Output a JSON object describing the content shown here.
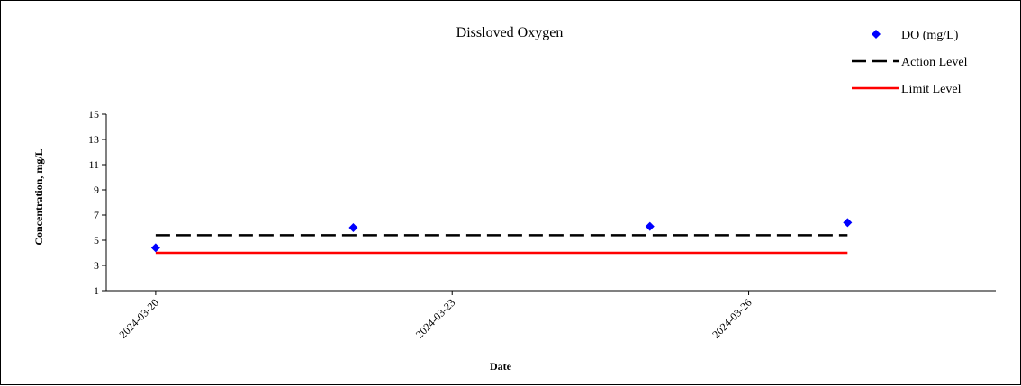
{
  "chart_data": {
    "type": "scatter",
    "title": "Dissloved Oxygen",
    "xlabel": "Date",
    "ylabel": "Concentration, mg/L",
    "xlim": [
      "2024-03-19 12:00",
      "2024-03-28 12:00"
    ],
    "ylim": [
      1,
      15
    ],
    "yticks": [
      1,
      3,
      5,
      7,
      9,
      11,
      13,
      15
    ],
    "xticks": [
      "2024-03-20",
      "2024-03-23",
      "2024-03-26"
    ],
    "grid": false,
    "legend_position": "top-right",
    "series": [
      {
        "name": "DO (mg/L)",
        "type": "scatter",
        "marker": "diamond",
        "color": "#0000ff",
        "points": [
          {
            "x": "2024-03-20",
            "y": 4.4
          },
          {
            "x": "2024-03-22",
            "y": 6.0
          },
          {
            "x": "2024-03-25",
            "y": 6.1
          },
          {
            "x": "2024-03-27",
            "y": 6.4
          }
        ]
      },
      {
        "name": "Action Level",
        "type": "line",
        "style": "dashed",
        "color": "#000000",
        "points": [
          {
            "x": "2024-03-20",
            "y": 5.4
          },
          {
            "x": "2024-03-27",
            "y": 5.4
          }
        ]
      },
      {
        "name": "Limit Level",
        "type": "line",
        "style": "solid",
        "color": "#ff0000",
        "points": [
          {
            "x": "2024-03-20",
            "y": 4.0
          },
          {
            "x": "2024-03-27",
            "y": 4.0
          }
        ]
      }
    ]
  }
}
